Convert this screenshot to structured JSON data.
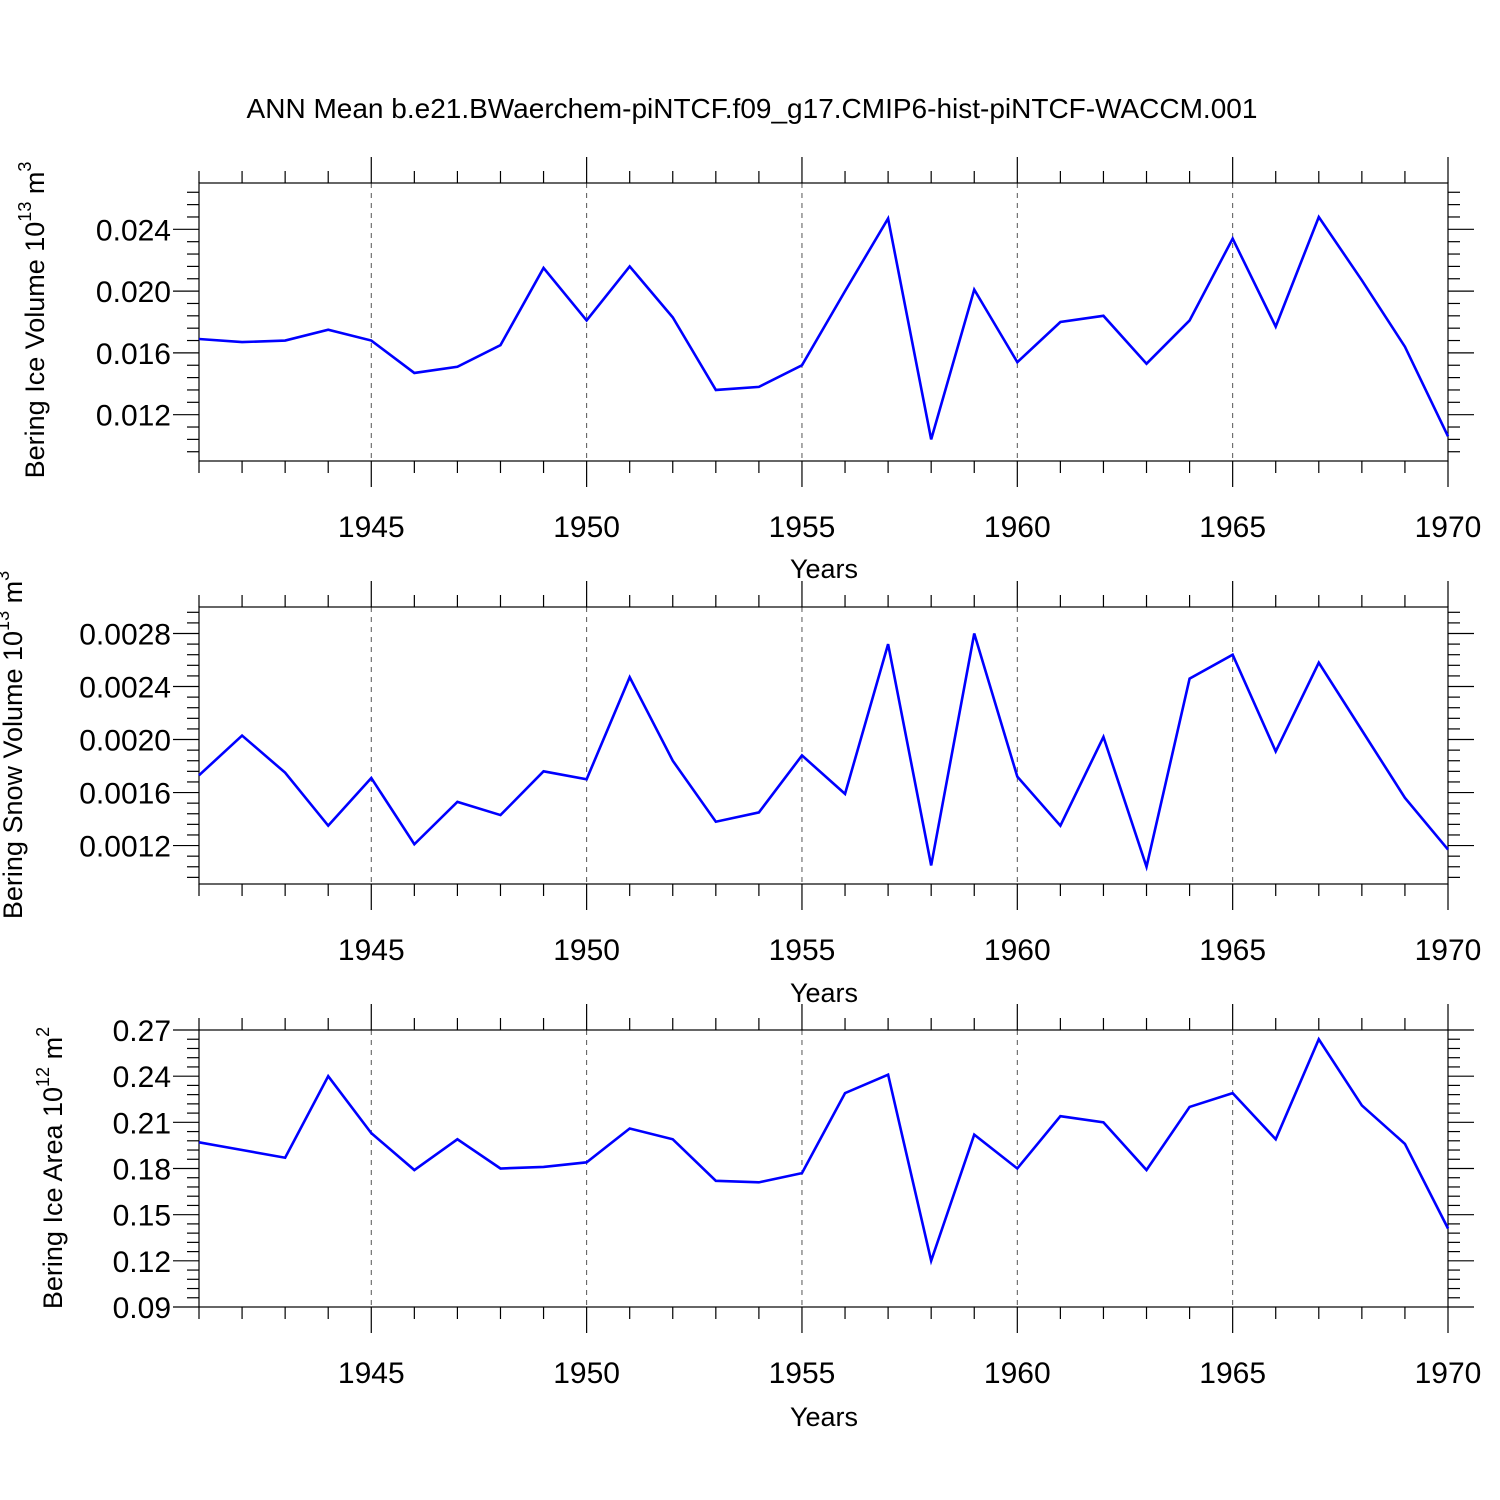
{
  "title": "ANN Mean b.e21.BWaerchem-piNTCF.f09_g17.CMIP6-hist-piNTCF-WACCM.001",
  "colors": {
    "series": "#0000ff",
    "grid": "#555555",
    "axis": "#000000"
  },
  "chart_data": [
    {
      "type": "line",
      "ylabel": "Bering Ice Volume 10",
      "ylabel_sup": "13",
      "ylabel_unit": " m",
      "ylabel_unit_sup": "3",
      "xlabel": "Years",
      "xlim": [
        1941,
        1970
      ],
      "ylim": [
        0.009,
        0.027
      ],
      "yticks": [
        0.012,
        0.016,
        0.02,
        0.024
      ],
      "ytick_labels": [
        "0.012",
        "0.016",
        "0.020",
        "0.024"
      ],
      "xticks": [
        1945,
        1950,
        1955,
        1960,
        1965,
        1970
      ],
      "xtick_labels": [
        "1945",
        "1950",
        "1955",
        "1960",
        "1965",
        "1970"
      ],
      "grid": "vertical dashed at labeled years",
      "x": [
        1941,
        1942,
        1943,
        1944,
        1945,
        1946,
        1947,
        1948,
        1949,
        1950,
        1951,
        1952,
        1953,
        1954,
        1955,
        1956,
        1957,
        1958,
        1959,
        1960,
        1961,
        1962,
        1963,
        1964,
        1965,
        1966,
        1967,
        1968,
        1969,
        1970
      ],
      "series": [
        {
          "values": [
            0.0169,
            0.0167,
            0.0168,
            0.0175,
            0.0168,
            0.0147,
            0.0151,
            0.0165,
            0.0215,
            0.0181,
            0.0216,
            0.0183,
            0.0136,
            0.0138,
            0.0152,
            0.02,
            0.0247,
            0.0104,
            0.0201,
            0.0154,
            0.018,
            0.0184,
            0.0153,
            0.0181,
            0.0234,
            0.0177,
            0.0248,
            0.0207,
            0.0164,
            0.0106
          ]
        }
      ]
    },
    {
      "type": "line",
      "ylabel": "Bering Snow Volume 10",
      "ylabel_sup": "13",
      "ylabel_unit": " m",
      "ylabel_unit_sup": "3",
      "xlabel": "Years",
      "xlim": [
        1941,
        1970
      ],
      "ylim": [
        0.00091,
        0.003
      ],
      "yticks": [
        0.0012,
        0.0016,
        0.002,
        0.0024,
        0.0028
      ],
      "ytick_labels": [
        "0.0012",
        "0.0016",
        "0.0020",
        "0.0024",
        "0.0028"
      ],
      "xticks": [
        1945,
        1950,
        1955,
        1960,
        1965,
        1970
      ],
      "xtick_labels": [
        "1945",
        "1950",
        "1955",
        "1960",
        "1965",
        "1970"
      ],
      "grid": "vertical dashed at labeled years",
      "x": [
        1941,
        1942,
        1943,
        1944,
        1945,
        1946,
        1947,
        1948,
        1949,
        1950,
        1951,
        1952,
        1953,
        1954,
        1955,
        1956,
        1957,
        1958,
        1959,
        1960,
        1961,
        1962,
        1963,
        1964,
        1965,
        1966,
        1967,
        1968,
        1969,
        1970
      ],
      "series": [
        {
          "values": [
            0.00173,
            0.00203,
            0.00175,
            0.00135,
            0.00171,
            0.00121,
            0.00153,
            0.00143,
            0.00176,
            0.0017,
            0.00247,
            0.00184,
            0.00138,
            0.00145,
            0.00188,
            0.00159,
            0.00272,
            0.00105,
            0.0028,
            0.00172,
            0.00135,
            0.00202,
            0.00104,
            0.00246,
            0.00264,
            0.00191,
            0.00258,
            0.00207,
            0.00156,
            0.00117
          ]
        }
      ]
    },
    {
      "type": "line",
      "ylabel": "Bering Ice Area 10",
      "ylabel_sup": "12",
      "ylabel_unit": " m",
      "ylabel_unit_sup": "2",
      "xlabel": "Years",
      "xlim": [
        1941,
        1970
      ],
      "ylim": [
        0.09,
        0.27
      ],
      "yticks": [
        0.09,
        0.12,
        0.15,
        0.18,
        0.21,
        0.24,
        0.27
      ],
      "ytick_labels": [
        "0.09",
        "0.12",
        "0.15",
        "0.18",
        "0.21",
        "0.24",
        "0.27"
      ],
      "xticks": [
        1945,
        1950,
        1955,
        1960,
        1965,
        1970
      ],
      "xtick_labels": [
        "1945",
        "1950",
        "1955",
        "1960",
        "1965",
        "1970"
      ],
      "grid": "vertical dashed at labeled years",
      "x": [
        1941,
        1942,
        1943,
        1944,
        1945,
        1946,
        1947,
        1948,
        1949,
        1950,
        1951,
        1952,
        1953,
        1954,
        1955,
        1956,
        1957,
        1958,
        1959,
        1960,
        1961,
        1962,
        1963,
        1964,
        1965,
        1966,
        1967,
        1968,
        1969,
        1970
      ],
      "series": [
        {
          "values": [
            0.197,
            0.192,
            0.187,
            0.24,
            0.203,
            0.179,
            0.199,
            0.18,
            0.181,
            0.184,
            0.206,
            0.199,
            0.172,
            0.171,
            0.177,
            0.229,
            0.241,
            0.12,
            0.202,
            0.18,
            0.214,
            0.21,
            0.179,
            0.22,
            0.229,
            0.199,
            0.264,
            0.221,
            0.196,
            0.141
          ]
        }
      ]
    }
  ]
}
